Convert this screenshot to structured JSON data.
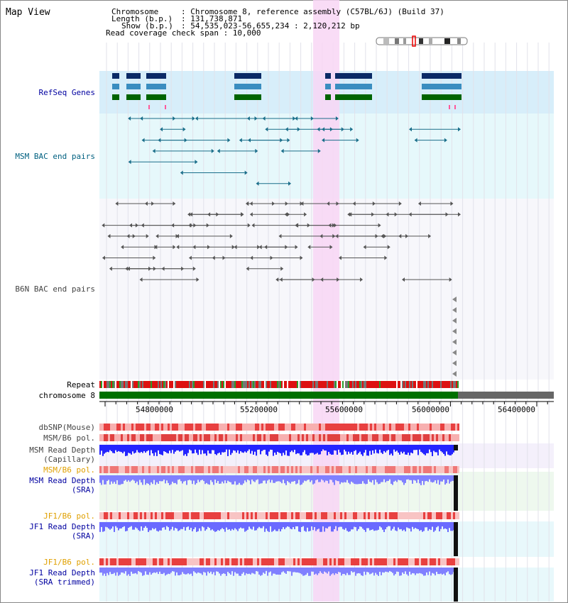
{
  "title": "Map View",
  "header": {
    "chromosome_key": "Chromosome",
    "chromosome_val": ": Chromosome 8, reference assembly (C57BL/6J) (Build 37)",
    "length_key": "Length (b.p.)",
    "length_val": ": 131,738,871",
    "show_key": "Show (b.p.)",
    "show_val": ": 54,535,023-56,655,234 : 2,120,212 bp",
    "coverage": "Read coverage check span : 10,000"
  },
  "tracks": {
    "refseq": "RefSeq Genes",
    "msm_bac": "MSM BAC end pairs",
    "b6n_bac": "B6N BAC end pairs",
    "repeat": "Repeat",
    "chromosome": "chromosome 8",
    "dbsnp": "dbSNP(Mouse)",
    "msm_b6_pol_1": "MSM/B6 pol.",
    "msm_read_cap": "MSM Read Depth\n(Capillary)",
    "msm_b6_pol_2": "MSM/B6 pol.",
    "msm_read_sra": "MSM Read Depth\n(SRA)",
    "jf1_b6_pol_1": "JF1/B6 pol.",
    "jf1_read_sra": "JF1 Read Depth\n(SRA)",
    "jf1_b6_pol_2": "JF1/B6 pol.",
    "jf1_read_trim": "JF1 Read Depth\n(SRA trimmed)"
  },
  "axis": {
    "ticks": [
      "54800000",
      "55200000",
      "55600000",
      "56000000",
      "56400000"
    ]
  },
  "colors": {
    "refseq_bg": "#d7eefa",
    "bac_bg": "#e6f8fb",
    "highlight": "#f8d6f4",
    "gene_dark": "#0a2a66",
    "gene_mid": "#3a8dc0",
    "gene_green": "#006400",
    "msm_bac": "#1a6e8a",
    "b6n_bac": "#555555",
    "chrom_green": "#007000",
    "chrom_grey": "#666666",
    "depth_blue": "#2424ff",
    "depth_light": "#8080ff",
    "label_blue": "#0000a0",
    "label_orange": "#e0a000",
    "label_teal": "#006080"
  }
}
